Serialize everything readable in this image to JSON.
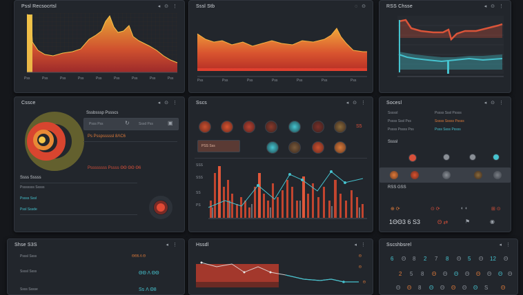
{
  "panels": {
    "p1": {
      "title": "Pssl Recsocrtsl",
      "icons": "◂ ⊙ ⋮"
    },
    "p2": {
      "title": "Sssl Stb",
      "icons": "◌ ⊙"
    },
    "p3": {
      "title": "RSS Chsse",
      "icons": "◂ ⊙ ⋮"
    },
    "p4": {
      "title": "Cssce",
      "icons": "◂ ⊙ ⋮"
    },
    "p5": {
      "title": "Sscs",
      "icons": "◂ ⊙ ⋮"
    },
    "p6": {
      "title": "Socesl",
      "icons": "◂ ⊙ ⋮"
    },
    "p7": {
      "title": "Shse S3S",
      "icons": "◂ ⋮"
    },
    "p8": {
      "title": "Hssdl",
      "icons": "◂ ⋮"
    },
    "p9": {
      "title": "Sscshbsrel",
      "icons": "◂ ⋮"
    }
  },
  "p1_axis": [
    "Pss",
    "Pss",
    "Pss",
    "Pss",
    "Pss",
    "Pss",
    "Pss",
    "Pss",
    "Pss"
  ],
  "p2_axis": [
    "Pss",
    "Pss",
    "Pss",
    "Pss",
    "Pss",
    "Pss",
    "Pss"
  ],
  "p4": {
    "subtitle": "Sssbsssp Pssscs",
    "field1": "Psss Pss",
    "field2": "Sssd Pss",
    "code1": "Ps Psspsssssl  8ΛC6",
    "code2": "Pssssssss Pssss  ΘΘ ΘΘ Θ6",
    "list_title": "Ssss Sssss",
    "rows": [
      "Psssssss Sssss",
      "Pssss Sssl",
      "Pssl Sssde"
    ]
  },
  "p5": {
    "badge": "S5",
    "tag": "PSS Sss",
    "axis": [
      "SSS",
      "SSS",
      "SS",
      "PS"
    ]
  },
  "p6": {
    "header": "Sssssl",
    "rows": [
      "Pssss Sssl Pssss",
      "Pssss Sssl Pss",
      "Pssss Pssss Pss"
    ],
    "highlights": [
      "Sssss Sssss Pssss",
      "Psss Ssss Pssss"
    ],
    "section": "Ssssl",
    "section2": "RSS GSS",
    "big_value": "1ΘΘ3  6 S3",
    "status": "Θ ⇄"
  },
  "p7": {
    "rows": [
      "Psssl Ssss",
      "Ssssl Ssss",
      "Ssss Sssse"
    ],
    "values": [
      "ΘΘ5  Λ  Θ",
      "ΘΘ  Λ  ΘΘ",
      "Ss  Λ  Θ8"
    ]
  },
  "p8": {
    "badges": [
      "Θ",
      "Θ",
      "Θ"
    ]
  },
  "p9": {
    "row1": [
      "6",
      "Θ",
      "8",
      "2",
      "7",
      "8",
      "Θ",
      "5",
      "Θ",
      "12",
      "Θ"
    ],
    "row2": [
      "2",
      "5",
      "8",
      "Θ",
      "Θ",
      "Θ",
      "Θ",
      "Θ",
      "Θ",
      "Θ",
      "Θ"
    ],
    "row3": [
      "Θ",
      "Θ",
      "8",
      "Θ",
      "Θ",
      "Θ",
      "Θ",
      "Θ",
      "S",
      "Θ"
    ]
  },
  "colors": {
    "accent_orange": "#e07b3a",
    "accent_red": "#d8503a",
    "accent_cyan": "#46c3cf",
    "panel": "#22262c"
  }
}
